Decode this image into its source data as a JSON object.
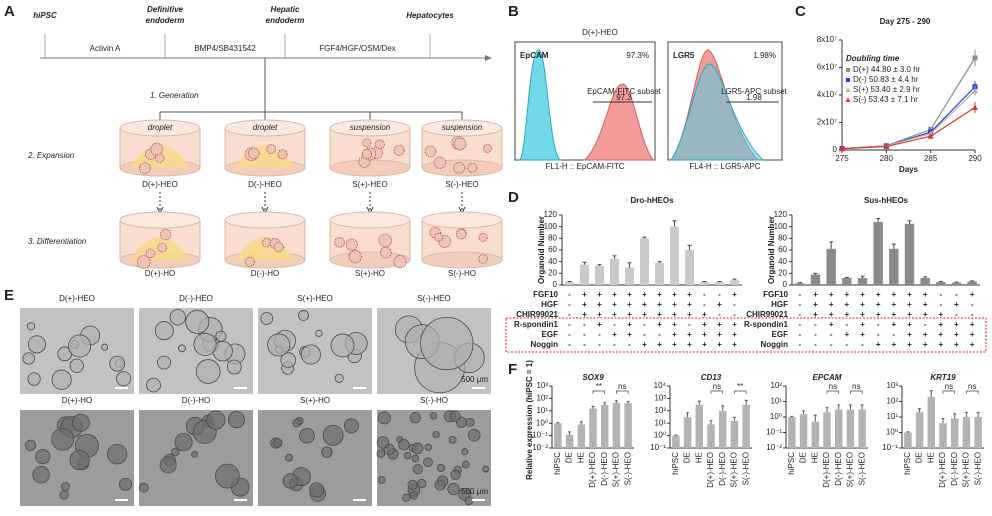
{
  "panel_a": {
    "letter": "A",
    "stages": [
      [
        "hiPSC"
      ],
      [
        "Definitive",
        "endoderm"
      ],
      [
        "Hepatic",
        "endoderm"
      ],
      [
        "Hepatocytes"
      ]
    ],
    "factors": [
      "Activin A",
      "BMP4/SB431542",
      "FGF4/HGF/OSM/Dex"
    ],
    "steps": [
      "1. Generation",
      "2. Expansion",
      "3. Differentiation"
    ],
    "culture": [
      "droplet",
      "droplet",
      "suspension",
      "suspension"
    ],
    "expansion_labels": [
      "D(+)-HEO",
      "D(-)-HEO",
      "S(+)-HEO",
      "S(-)-HEO"
    ],
    "differentiation_labels": [
      "D(+)-HO",
      "D(-)-HO",
      "S(+)-HO",
      "S(-)-HO"
    ]
  },
  "panel_b": {
    "letter": "B",
    "title": "D(+)-HEO",
    "plots": [
      {
        "marker": "EpCAM",
        "percent": "97.3%",
        "gate_name": "EpCAM-FITC subset",
        "gate_value": "97.3",
        "axis_label": "FL1-H :: EpCAM-FITC"
      },
      {
        "marker": "LGR5",
        "percent": "1.98%",
        "gate_name": "LGR5-APC subset",
        "gate_value": "1.98",
        "axis_label": "FL4-H :: LGR5-APC"
      }
    ]
  },
  "panel_c": {
    "letter": "C",
    "chart_data": {
      "type": "line",
      "title": "Day 275 - 290",
      "legend_title": "Doubling time",
      "x_label": "Days",
      "x": [
        275,
        280,
        285,
        290
      ],
      "xlim": [
        275,
        290
      ],
      "xticks": [
        275,
        280,
        285,
        290
      ],
      "ylim": [
        0,
        80000000
      ],
      "yticks": [
        0,
        {
          "value": 20000000,
          "label": "2x10⁷"
        },
        {
          "value": 40000000,
          "label": "4x10⁷"
        },
        {
          "value": 60000000,
          "label": "6x10⁷"
        },
        {
          "value": 80000000,
          "label": "8x10⁷"
        }
      ],
      "series": [
        {
          "name": "D(+) 44.80 ± 3.0 hr",
          "color": "#8c8c8c",
          "marker": "square",
          "values": [
            1000000,
            3000000,
            15000000,
            67000000
          ],
          "errors": [
            200000,
            500000,
            1500000,
            6000000
          ]
        },
        {
          "name": "D(-) 50.83 ± 4.4 hr",
          "color": "#1f3fd6",
          "marker": "square",
          "values": [
            1000000,
            3000000,
            13000000,
            46000000
          ],
          "errors": [
            200000,
            500000,
            1500000,
            4000000
          ]
        },
        {
          "name": "S(+) 53.40 ± 2.9 hr",
          "color": "#b0b0b0",
          "marker": "triangle",
          "values": [
            1000000,
            3000000,
            12000000,
            43000000
          ],
          "errors": [
            200000,
            500000,
            1500000,
            4000000
          ]
        },
        {
          "name": "S(-) 53.43 ± 7.1 hr",
          "color": "#e0302a",
          "marker": "triangle",
          "values": [
            1000000,
            2500000,
            10000000,
            31000000
          ],
          "errors": [
            200000,
            500000,
            1500000,
            4000000
          ]
        }
      ]
    }
  },
  "panel_d": {
    "letter": "D",
    "y_label": "Organoid Number",
    "conditions": {
      "rows": [
        "FGF10",
        "HGF",
        "CHIR99021",
        "R-spondin1",
        "EGF",
        "Noggin"
      ],
      "marks": [
        [
          "-",
          "+",
          "+",
          "+",
          "+",
          "+",
          "+",
          "+",
          "+",
          "-",
          "-",
          "+"
        ],
        [
          "-",
          "+",
          "+",
          "+",
          "+",
          "+",
          "+",
          "+",
          "+",
          "-",
          "+",
          "-"
        ],
        [
          "-",
          "+",
          "+",
          "+",
          "+",
          "+",
          "+",
          "+",
          "+",
          "+",
          "-",
          "-"
        ],
        [
          "-",
          "-",
          "+",
          "-",
          "+",
          "-",
          "+",
          "+",
          "-",
          "+",
          "+",
          "+"
        ],
        [
          "-",
          "-",
          "-",
          "+",
          "+",
          "-",
          "-",
          "+",
          "+",
          "+",
          "+",
          "+"
        ],
        [
          "-",
          "-",
          "-",
          "-",
          "-",
          "+",
          "+",
          "+",
          "+",
          "+",
          "+",
          "+"
        ]
      ]
    },
    "charts": [
      {
        "type": "bar",
        "title": "Dro-hHEOs",
        "color": "#c9c9c9",
        "values": [
          5,
          35,
          33,
          45,
          30,
          80,
          38,
          100,
          60,
          5,
          5,
          8
        ],
        "errors": [
          1,
          4,
          2,
          5,
          8,
          2,
          2,
          10,
          8,
          1,
          1,
          2
        ],
        "ylim": [
          0,
          120
        ],
        "yticks": [
          0,
          20,
          40,
          60,
          80,
          100,
          120
        ]
      },
      {
        "type": "bar",
        "title": "Sus-hHEOs",
        "color": "#8a8a8a",
        "values": [
          3,
          18,
          62,
          12,
          12,
          108,
          62,
          105,
          12,
          5,
          4,
          6
        ],
        "errors": [
          1,
          2,
          12,
          1,
          3,
          6,
          8,
          5,
          2,
          1,
          1,
          1
        ],
        "ylim": [
          0,
          120
        ],
        "yticks": [
          0,
          20,
          40,
          60,
          80,
          100,
          120
        ]
      }
    ]
  },
  "panel_e": {
    "letter": "E",
    "labels": [
      "D(+)-HEO",
      "D(-)-HEO",
      "S(+)-HEO",
      "S(-)-HEO",
      "D(+)-HO",
      "D(-)-HO",
      "S(+)-HO",
      "S(-)-HO"
    ],
    "scale_label": "500 μm"
  },
  "panel_f": {
    "letter": "F",
    "y_label": "Relative expression (hiPSC = 1)",
    "categories": [
      "hiPSC",
      "DE",
      "HE",
      "D(+)-HEO",
      "D(-)-HEO",
      "S(+)-HEO",
      "S(-)-HEO"
    ],
    "color": "#b3b3b3",
    "charts": [
      {
        "type": "bar",
        "log": true,
        "title": "SOX9",
        "values": [
          1,
          0.12,
          0.8,
          15,
          30,
          45,
          40
        ],
        "errors": [
          0.1,
          0.08,
          0.5,
          8,
          15,
          20,
          15
        ],
        "ylim": [
          0.01,
          1000
        ],
        "yticks": [
          {
            "value": 0.01,
            "label": "10⁻²"
          },
          {
            "value": 0.1,
            "label": "10⁻¹"
          },
          {
            "value": 1,
            "label": "10⁰"
          },
          {
            "value": 10,
            "label": "10¹"
          },
          {
            "value": 100,
            "label": "10²"
          },
          {
            "value": 1000,
            "label": "10³"
          }
        ],
        "annotations": [
          "**",
          "ns"
        ]
      },
      {
        "type": "bar",
        "log": true,
        "title": "CD13",
        "values": [
          1,
          30,
          300,
          8,
          100,
          15,
          300
        ],
        "errors": [
          0.1,
          40,
          300,
          8,
          150,
          15,
          400
        ],
        "ylim": [
          0.1,
          10000
        ],
        "yticks": [
          {
            "value": 0.1,
            "label": "10⁻¹"
          },
          {
            "value": 1,
            "label": "10⁰"
          },
          {
            "value": 10,
            "label": "10¹"
          },
          {
            "value": 100,
            "label": "10²"
          },
          {
            "value": 1000,
            "label": "10³"
          },
          {
            "value": 10000,
            "label": "10⁴"
          }
        ],
        "annotations": [
          "ns",
          "**"
        ]
      },
      {
        "type": "bar",
        "log": true,
        "title": "EPCAM",
        "values": [
          1,
          1.5,
          0.5,
          2,
          3,
          3,
          3
        ],
        "errors": [
          0.1,
          1,
          0.8,
          2,
          3,
          3,
          3
        ],
        "ylim": [
          0.01,
          100
        ],
        "yticks": [
          {
            "value": 0.01,
            "label": "10⁻²"
          },
          {
            "value": 0.1,
            "label": "10⁻¹"
          },
          {
            "value": 1,
            "label": "10⁰"
          },
          {
            "value": 10,
            "label": "10¹"
          },
          {
            "value": 100,
            "label": "10²"
          }
        ],
        "annotations": [
          "ns",
          "ns"
        ]
      },
      {
        "type": "bar",
        "log": true,
        "title": "KRT19",
        "values": [
          1,
          20,
          200,
          4,
          8,
          10,
          10
        ],
        "errors": [
          0.1,
          15,
          300,
          4,
          8,
          10,
          10
        ],
        "ylim": [
          0.1,
          1000
        ],
        "yticks": [
          {
            "value": 0.1,
            "label": "10⁻¹"
          },
          {
            "value": 1,
            "label": "10⁰"
          },
          {
            "value": 10,
            "label": "10¹"
          },
          {
            "value": 100,
            "label": "10²"
          },
          {
            "value": 1000,
            "label": "10³"
          }
        ],
        "annotations": [
          "ns",
          "ns"
        ]
      }
    ]
  }
}
